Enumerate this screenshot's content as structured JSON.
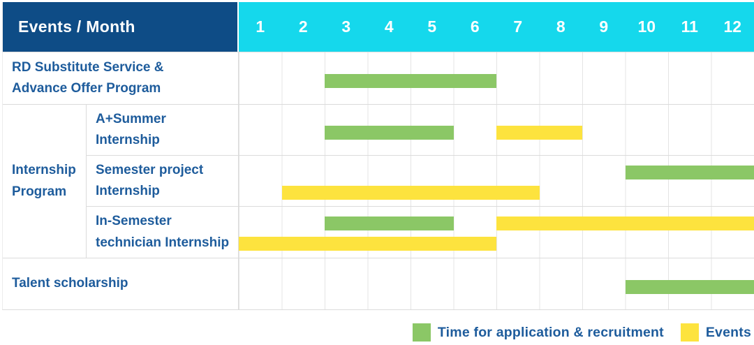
{
  "header": {
    "corner_label": "Events / Month",
    "months": [
      "1",
      "2",
      "3",
      "4",
      "5",
      "6",
      "7",
      "8",
      "9",
      "10",
      "11",
      "12"
    ]
  },
  "colors": {
    "corner_header_bg": "#0e4c86",
    "month_header_bg": "#15d8ec",
    "header_text": "#ffffff",
    "label_text": "#1e5c9c",
    "grid_line": "#e4e4e4",
    "application_green": "#8bc766",
    "event_yellow": "#fde33e"
  },
  "legend": {
    "items": [
      {
        "key": "application",
        "label": "Time for application & recruitment"
      },
      {
        "key": "event",
        "label": "Events"
      }
    ]
  },
  "chart_data": {
    "type": "bar",
    "subtype": "gantt-timeline",
    "title": "Events / Month",
    "x_categories": [
      "1",
      "2",
      "3",
      "4",
      "5",
      "6",
      "7",
      "8",
      "9",
      "10",
      "11",
      "12"
    ],
    "x_range": [
      1,
      12
    ],
    "grid": true,
    "legend_position": "bottom-right",
    "bar_types": {
      "application": {
        "label": "Time for application & recruitment",
        "color": "#8bc766"
      },
      "event": {
        "label": "Events",
        "color": "#fde33e"
      }
    },
    "groups": [
      {
        "label": "Internship\nProgram",
        "row_indexes": [
          1,
          2,
          3
        ]
      }
    ],
    "rows": [
      {
        "group": "",
        "label": "RD Substitute Service &\nAdvance Offer Program",
        "bars": [
          {
            "type": "application",
            "from_month": 3,
            "to_month": 6,
            "lane": "middle"
          }
        ]
      },
      {
        "group": "Internship Program",
        "label": "A+Summer\nInternship",
        "bars": [
          {
            "type": "application",
            "from_month": 3,
            "to_month": 5,
            "lane": "middle"
          },
          {
            "type": "event",
            "from_month": 7,
            "to_month": 8,
            "lane": "middle"
          }
        ]
      },
      {
        "group": "Internship Program",
        "label": "Semester project\nInternship",
        "bars": [
          {
            "type": "application",
            "from_month": 10,
            "to_month": 12,
            "lane": "top"
          },
          {
            "type": "event",
            "from_month": 2,
            "to_month": 7,
            "lane": "bottom"
          }
        ]
      },
      {
        "group": "Internship Program",
        "label": "In-Semester\ntechnician Internship",
        "bars": [
          {
            "type": "application",
            "from_month": 3,
            "to_month": 5,
            "lane": "top"
          },
          {
            "type": "event",
            "from_month": 7,
            "to_month": 12,
            "lane": "top"
          },
          {
            "type": "event",
            "from_month": 1,
            "to_month": 6,
            "lane": "bottom"
          }
        ]
      },
      {
        "group": "",
        "label": "Talent scholarship",
        "bars": [
          {
            "type": "application",
            "from_month": 10,
            "to_month": 12,
            "lane": "middle"
          }
        ]
      }
    ]
  }
}
